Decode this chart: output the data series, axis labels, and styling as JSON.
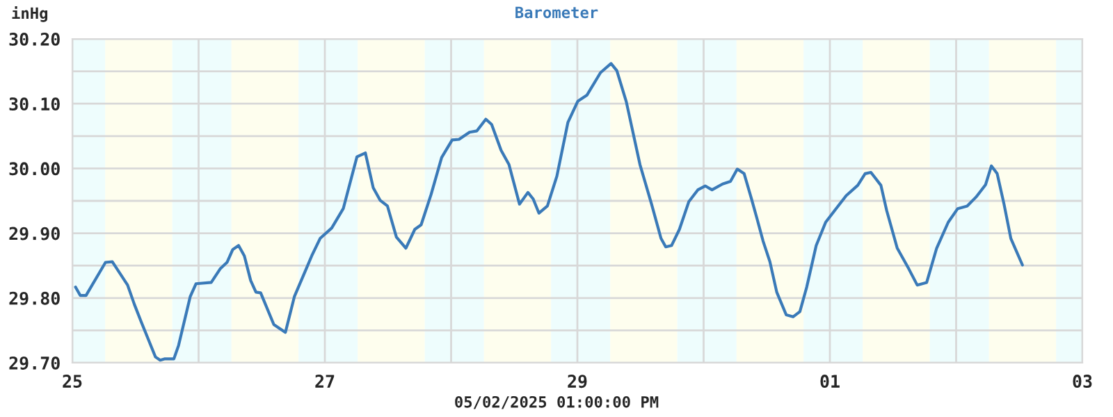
{
  "chart_data": {
    "type": "line",
    "title": "Barometer",
    "ylabel": "inHg",
    "xlabel": "05/02/2025 01:00:00 PM",
    "x": [
      "2025-04-25T00:36",
      "2025-04-25T01:30",
      "2025-04-25T02:36",
      "2025-04-25T06:18",
      "2025-04-25T07:36",
      "2025-04-25T10:30",
      "2025-04-25T11:48",
      "2025-04-25T13:06",
      "2025-04-25T15:48",
      "2025-04-25T16:42",
      "2025-04-25T17:30",
      "2025-04-25T19:18",
      "2025-04-25T20:12",
      "2025-04-25T22:24",
      "2025-04-25T23:30",
      "2025-04-26T02:24",
      "2025-04-26T04:06",
      "2025-04-26T05:24",
      "2025-04-26T06:30",
      "2025-04-26T07:36",
      "2025-04-26T08:42",
      "2025-04-26T09:54",
      "2025-04-26T10:54",
      "2025-04-26T11:48",
      "2025-04-26T14:18",
      "2025-04-26T16:30",
      "2025-04-26T18:12",
      "2025-04-26T20:18",
      "2025-04-26T21:30",
      "2025-04-26T23:06",
      "2025-04-27T01:18",
      "2025-04-27T03:30",
      "2025-04-27T06:06",
      "2025-04-27T07:42",
      "2025-04-27T09:12",
      "2025-04-27T10:30",
      "2025-04-27T11:54",
      "2025-04-27T13:36",
      "2025-04-27T15:24",
      "2025-04-27T17:06",
      "2025-04-27T18:18",
      "2025-04-27T20:12",
      "2025-04-27T22:12",
      "2025-04-28T00:12",
      "2025-04-28T01:30",
      "2025-04-28T03:30",
      "2025-04-28T04:54",
      "2025-04-28T06:36",
      "2025-04-28T07:42",
      "2025-04-28T09:30",
      "2025-04-28T11:00",
      "2025-04-28T13:00",
      "2025-04-28T14:36",
      "2025-04-28T15:36",
      "2025-04-28T16:42",
      "2025-04-28T18:18",
      "2025-04-28T20:06",
      "2025-04-28T22:12",
      "2025-04-29T00:06",
      "2025-04-29T01:48",
      "2025-04-29T04:24",
      "2025-04-29T06:24",
      "2025-04-29T07:30",
      "2025-04-29T09:18",
      "2025-04-29T11:54",
      "2025-04-29T14:06",
      "2025-04-29T15:54",
      "2025-04-29T16:48",
      "2025-04-29T17:54",
      "2025-04-29T19:24",
      "2025-04-29T21:12",
      "2025-04-29T22:54",
      "2025-04-30T00:18",
      "2025-04-30T01:36",
      "2025-04-30T03:36",
      "2025-04-30T05:06",
      "2025-04-30T06:24",
      "2025-04-30T07:42",
      "2025-04-30T09:06",
      "2025-04-30T10:06",
      "2025-04-30T11:18",
      "2025-04-30T12:36",
      "2025-04-30T13:54",
      "2025-04-30T15:42",
      "2025-04-30T17:00",
      "2025-04-30T18:18",
      "2025-04-30T19:36",
      "2025-04-30T21:24",
      "2025-04-30T23:12",
      "2025-05-01T00:54",
      "2025-05-01T03:06",
      "2025-05-01T05:18",
      "2025-05-01T06:42",
      "2025-05-01T07:48",
      "2025-05-01T09:42",
      "2025-05-01T10:48",
      "2025-05-01T12:48",
      "2025-05-01T15:00",
      "2025-05-01T16:36",
      "2025-05-01T18:24",
      "2025-05-01T20:18",
      "2025-05-01T22:30",
      "2025-05-02T00:18",
      "2025-05-02T02:06",
      "2025-05-02T03:48",
      "2025-05-02T05:36",
      "2025-05-02T06:42",
      "2025-05-02T07:48",
      "2025-05-02T09:06",
      "2025-05-02T10:24",
      "2025-05-02T12:36"
    ],
    "series": [
      {
        "color": "#3a7ab8",
        "values": [
          29.817,
          29.804,
          29.804,
          29.855,
          29.856,
          29.82,
          29.79,
          29.763,
          29.709,
          29.704,
          29.706,
          29.706,
          29.727,
          29.802,
          29.822,
          29.824,
          29.845,
          29.855,
          29.875,
          29.881,
          29.865,
          29.827,
          29.809,
          29.808,
          29.759,
          29.747,
          29.802,
          29.842,
          29.865,
          29.892,
          29.908,
          29.938,
          30.018,
          30.024,
          29.97,
          29.951,
          29.942,
          29.894,
          29.877,
          29.906,
          29.913,
          29.96,
          30.017,
          30.044,
          30.045,
          30.056,
          30.058,
          30.076,
          30.068,
          30.028,
          30.006,
          29.945,
          29.963,
          29.953,
          29.931,
          29.942,
          29.988,
          30.071,
          30.104,
          30.113,
          30.148,
          30.162,
          30.151,
          30.103,
          30.006,
          29.945,
          29.892,
          29.879,
          29.881,
          29.906,
          29.949,
          29.967,
          29.973,
          29.967,
          29.976,
          29.98,
          29.999,
          29.992,
          29.953,
          29.924,
          29.888,
          29.856,
          29.809,
          29.774,
          29.771,
          29.779,
          29.817,
          29.881,
          29.917,
          29.935,
          29.958,
          29.974,
          29.992,
          29.994,
          29.974,
          29.935,
          29.877,
          29.845,
          29.82,
          29.824,
          29.877,
          29.917,
          29.938,
          29.942,
          29.956,
          29.975,
          30.004,
          29.992,
          29.945,
          29.892,
          29.851
        ]
      }
    ],
    "xlim": [
      "2025-04-25",
      "2025-05-03"
    ],
    "xticks": [
      {
        "value": "2025-04-25",
        "label": "25"
      },
      {
        "value": "2025-04-26",
        "label": null
      },
      {
        "value": "2025-04-27",
        "label": "27"
      },
      {
        "value": "2025-04-28",
        "label": null
      },
      {
        "value": "2025-04-29",
        "label": "29"
      },
      {
        "value": "2025-04-30",
        "label": null
      },
      {
        "value": "2025-05-01",
        "label": "01"
      },
      {
        "value": "2025-05-02",
        "label": null
      },
      {
        "value": "2025-05-03",
        "label": "03"
      }
    ],
    "ylim": [
      29.7,
      30.2
    ],
    "yticks": [
      {
        "value": 29.7,
        "label": "29.70"
      },
      {
        "value": 29.75,
        "label": null
      },
      {
        "value": 29.8,
        "label": "29.80"
      },
      {
        "value": 29.85,
        "label": null
      },
      {
        "value": 29.9,
        "label": "29.90"
      },
      {
        "value": 29.95,
        "label": null
      },
      {
        "value": 30.0,
        "label": "30.00"
      },
      {
        "value": 30.05,
        "label": null
      },
      {
        "value": 30.1,
        "label": "30.10"
      },
      {
        "value": 30.15,
        "label": null
      },
      {
        "value": 30.2,
        "label": "30.20"
      }
    ],
    "bands": [
      {
        "axis": "x",
        "from": "2025-04-25T00:00",
        "to": "2025-04-25T06:15",
        "color": "#eefdfd"
      },
      {
        "axis": "x",
        "from": "2025-04-25T06:15",
        "to": "2025-04-25T19:00",
        "color": "#fefeee"
      },
      {
        "axis": "x",
        "from": "2025-04-25T19:00",
        "to": "2025-04-26T06:15",
        "color": "#eefdfd"
      },
      {
        "axis": "x",
        "from": "2025-04-26T06:15",
        "to": "2025-04-26T19:00",
        "color": "#fefeee"
      },
      {
        "axis": "x",
        "from": "2025-04-26T19:00",
        "to": "2025-04-27T06:15",
        "color": "#eefdfd"
      },
      {
        "axis": "x",
        "from": "2025-04-27T06:15",
        "to": "2025-04-27T19:00",
        "color": "#fefeee"
      },
      {
        "axis": "x",
        "from": "2025-04-27T19:00",
        "to": "2025-04-28T06:15",
        "color": "#eefdfd"
      },
      {
        "axis": "x",
        "from": "2025-04-28T06:15",
        "to": "2025-04-28T19:00",
        "color": "#fefeee"
      },
      {
        "axis": "x",
        "from": "2025-04-28T19:00",
        "to": "2025-04-29T06:15",
        "color": "#eefdfd"
      },
      {
        "axis": "x",
        "from": "2025-04-29T06:15",
        "to": "2025-04-29T19:00",
        "color": "#fefeee"
      },
      {
        "axis": "x",
        "from": "2025-04-29T19:00",
        "to": "2025-04-30T06:15",
        "color": "#eefdfd"
      },
      {
        "axis": "x",
        "from": "2025-04-30T06:15",
        "to": "2025-04-30T19:00",
        "color": "#fefeee"
      },
      {
        "axis": "x",
        "from": "2025-04-30T19:00",
        "to": "2025-05-01T06:15",
        "color": "#eefdfd"
      },
      {
        "axis": "x",
        "from": "2025-05-01T06:15",
        "to": "2025-05-01T19:00",
        "color": "#fefeee"
      },
      {
        "axis": "x",
        "from": "2025-05-01T19:00",
        "to": "2025-05-02T06:15",
        "color": "#eefdfd"
      },
      {
        "axis": "x",
        "from": "2025-05-02T06:15",
        "to": "2025-05-02T19:00",
        "color": "#fefeee"
      },
      {
        "axis": "x",
        "from": "2025-05-02T19:00",
        "to": "2025-05-03T00:00",
        "color": "#eefdfd"
      }
    ],
    "grid": true
  }
}
